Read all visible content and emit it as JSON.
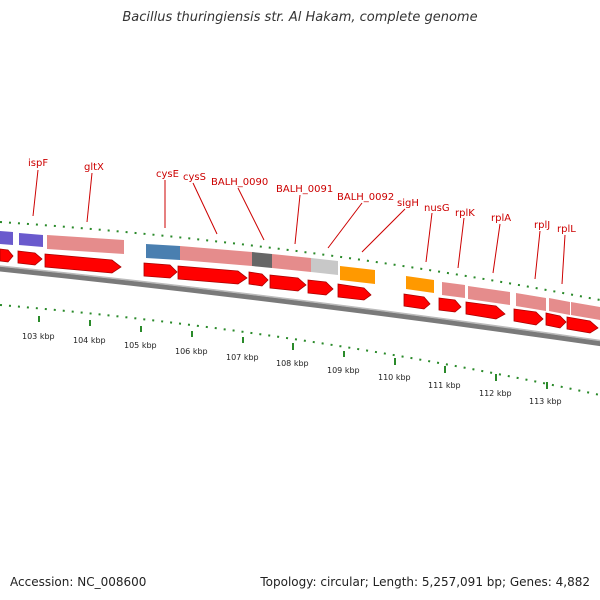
{
  "title": "Bacillus thuringiensis str. Al Hakam, complete genome",
  "footer": {
    "accession": "Accession: NC_008600",
    "summary": "Topology: circular; Length: 5,257,091 bp; Genes: 4,882"
  },
  "colors": {
    "cds_arrow": "#ff0000",
    "cds_box": "#e58c8c",
    "trna_box": "#6a5acd",
    "blue_box": "#4a7fb0",
    "gray_box": "#666666",
    "lightgray_box": "#c8c8c8",
    "orange_box": "#ff9900",
    "tick": "#2a8a2a",
    "label": "#cc0000",
    "backbone": "#808080"
  },
  "gene_labels": [
    "ispF",
    "gltX",
    "cysE",
    "cysS",
    "BALH_0090",
    "BALH_0091",
    "BALH_0092",
    "sigH",
    "nusG",
    "rplK",
    "rplA",
    "rplJ",
    "rplL"
  ],
  "kbp_labels": [
    "103 kbp",
    "104 kbp",
    "105 kbp",
    "106 kbp",
    "107 kbp",
    "108 kbp",
    "109 kbp",
    "110 kbp",
    "111 kbp",
    "112 kbp",
    "113 kbp"
  ]
}
